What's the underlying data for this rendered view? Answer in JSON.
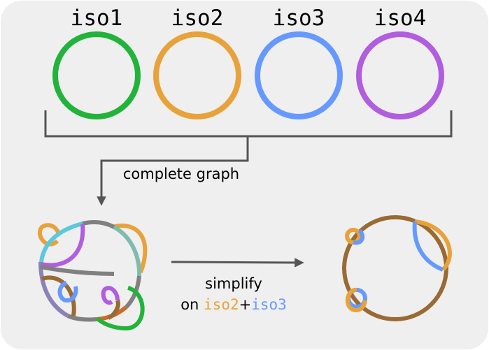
{
  "isoforms": [
    {
      "label": "iso1",
      "color": "#22b33a"
    },
    {
      "label": "iso2",
      "color": "#e8a23a"
    },
    {
      "label": "iso3",
      "color": "#6699ff"
    },
    {
      "label": "iso4",
      "color": "#b05de0"
    }
  ],
  "step1": {
    "label": "complete graph"
  },
  "step2": {
    "line1": "simplify",
    "prefix": "on ",
    "term_a": "iso2",
    "joiner": "+",
    "term_b": "iso3"
  },
  "colors": {
    "panel": "#efefef",
    "connector": "#555555",
    "gray": "#808080",
    "brown": "#9a6a35",
    "teal": "#80bcae",
    "cyan": "#5cc8e0",
    "slate": "#8a82b8",
    "rust": "#cc6a2a"
  }
}
